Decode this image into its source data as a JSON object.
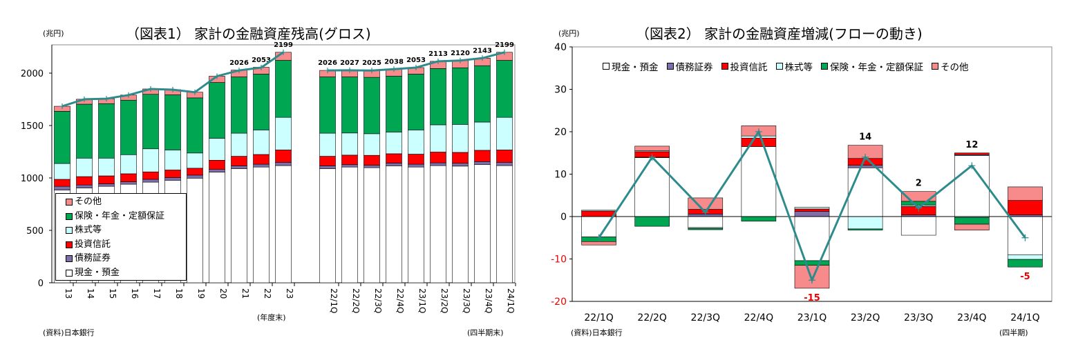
{
  "chart_data": [
    {
      "type": "bar",
      "stacked": true,
      "title": "（図表1） 家計の金融資産残高(グロス)",
      "ylabel": "(兆円)",
      "ylim": [
        0,
        2270
      ],
      "yticks": [
        0,
        500,
        1000,
        1500,
        2000
      ],
      "categories": [
        "13",
        "14",
        "15",
        "16",
        "17",
        "18",
        "19",
        "20",
        "21",
        "22",
        "23",
        "22/1Q",
        "22/2Q",
        "22/3Q",
        "22/4Q",
        "23/1Q",
        "23/2Q",
        "23/3Q",
        "23/4Q",
        "24/1Q"
      ],
      "xgroup_labels": [
        "(年度末)",
        "(四半期末)"
      ],
      "series": [
        {
          "name": "現金・預金",
          "color": "#ffffff",
          "values": [
            884,
            904,
            920,
            940,
            960,
            978,
            998,
            1056,
            1089,
            1104,
            1118,
            1089,
            1104,
            1098,
            1116,
            1104,
            1118,
            1113,
            1127,
            1118
          ]
        },
        {
          "name": "債務証券",
          "color": "#7f6fa8",
          "values": [
            36,
            29,
            24,
            24,
            27,
            26,
            29,
            26,
            27,
            27,
            31,
            27,
            23,
            24,
            26,
            27,
            26,
            27,
            29,
            31
          ]
        },
        {
          "name": "投資信託",
          "color": "#ff0000",
          "values": [
            67,
            80,
            76,
            76,
            71,
            72,
            66,
            87,
            91,
            93,
            118,
            91,
            91,
            94,
            89,
            96,
            103,
            104,
            108,
            118
          ]
        },
        {
          "name": "株式等",
          "color": "#ccffff",
          "values": [
            151,
            176,
            169,
            182,
            220,
            191,
            145,
            209,
            220,
            234,
            311,
            220,
            211,
            206,
            207,
            231,
            260,
            267,
            269,
            311
          ]
        },
        {
          "name": "保険・年金・定額保証",
          "color": "#00a651",
          "values": [
            498,
            515,
            520,
            520,
            520,
            526,
            526,
            533,
            537,
            533,
            544,
            537,
            535,
            538,
            533,
            533,
            537,
            540,
            538,
            544
          ]
        },
        {
          "name": "その他",
          "color": "#f78b8b",
          "values": [
            48,
            47,
            47,
            49,
            51,
            49,
            54,
            60,
            65,
            65,
            77,
            62,
            63,
            65,
            67,
            62,
            69,
            69,
            72,
            77
          ]
        }
      ],
      "total_line": {
        "color": "#2e8b8b",
        "values": [
          1684,
          1751,
          1756,
          1791,
          1849,
          1842,
          1818,
          1971,
          2026,
          2053,
          2199,
          2026,
          2027,
          2025,
          2038,
          2053,
          2113,
          2120,
          2143,
          2199
        ]
      },
      "data_labels": {
        "21": "2026",
        "22": "2053",
        "23": "2199",
        "22/1Q": "2026",
        "22/2Q": "2027",
        "22/3Q": "2025",
        "22/4Q": "2038",
        "23/1Q": "2053",
        "23/2Q": "2113",
        "23/3Q": "2120",
        "23/4Q": "2143",
        "24/1Q": "2199"
      },
      "legend": "bottom-left",
      "source": "(資料)日本銀行"
    },
    {
      "type": "bar",
      "stacked": true,
      "title": "（図表2） 家計の金融資産増減(フローの動き)",
      "ylabel": "(兆円)",
      "ylim": [
        -20,
        40
      ],
      "yticks": [
        -20,
        -10,
        0,
        10,
        20,
        30,
        40
      ],
      "categories": [
        "22/1Q",
        "22/2Q",
        "22/3Q",
        "22/4Q",
        "23/1Q",
        "23/2Q",
        "23/3Q",
        "23/4Q",
        "24/1Q"
      ],
      "xunit": "(四半期)",
      "series": [
        {
          "name": "現金・預金",
          "color": "#ffffff",
          "values": [
            -4.8,
            13.9,
            -2.6,
            16.5,
            -10.4,
            11.5,
            -4.4,
            14.4,
            -9.0
          ]
        },
        {
          "name": "債務証券",
          "color": "#7f6fa8",
          "values": [
            0.0,
            0.1,
            0.6,
            0.0,
            1.2,
            0.6,
            0.4,
            0.2,
            0.4
          ]
        },
        {
          "name": "投資信託",
          "color": "#ff0000",
          "values": [
            1.3,
            1.3,
            1.1,
            2.0,
            0.6,
            1.6,
            2.0,
            0.4,
            3.4
          ]
        },
        {
          "name": "株式等",
          "color": "#ccffff",
          "values": [
            0.2,
            0.2,
            -0.2,
            0.5,
            0.4,
            -2.9,
            0.3,
            -0.2,
            -1.1
          ]
        },
        {
          "name": "保険・年金・定額保証",
          "color": "#00a651",
          "values": [
            -1.1,
            -2.3,
            -0.3,
            -1.1,
            -1.1,
            -0.3,
            0.9,
            -1.6,
            -1.8
          ]
        },
        {
          "name": "その他",
          "color": "#f78b8b",
          "values": [
            -0.8,
            1.1,
            2.7,
            2.4,
            -5.4,
            3.1,
            2.3,
            -1.4,
            3.2
          ]
        }
      ],
      "total_line": {
        "color": "#2e8b8b",
        "values": [
          -5,
          14,
          1,
          20,
          -15,
          14,
          2,
          12,
          -5
        ]
      },
      "data_labels": {
        "23/1Q": "-15",
        "23/2Q": "14",
        "23/3Q": "2",
        "23/4Q": "12",
        "24/1Q": "-5"
      },
      "legend": "top",
      "source": "(資料)日本銀行"
    }
  ]
}
